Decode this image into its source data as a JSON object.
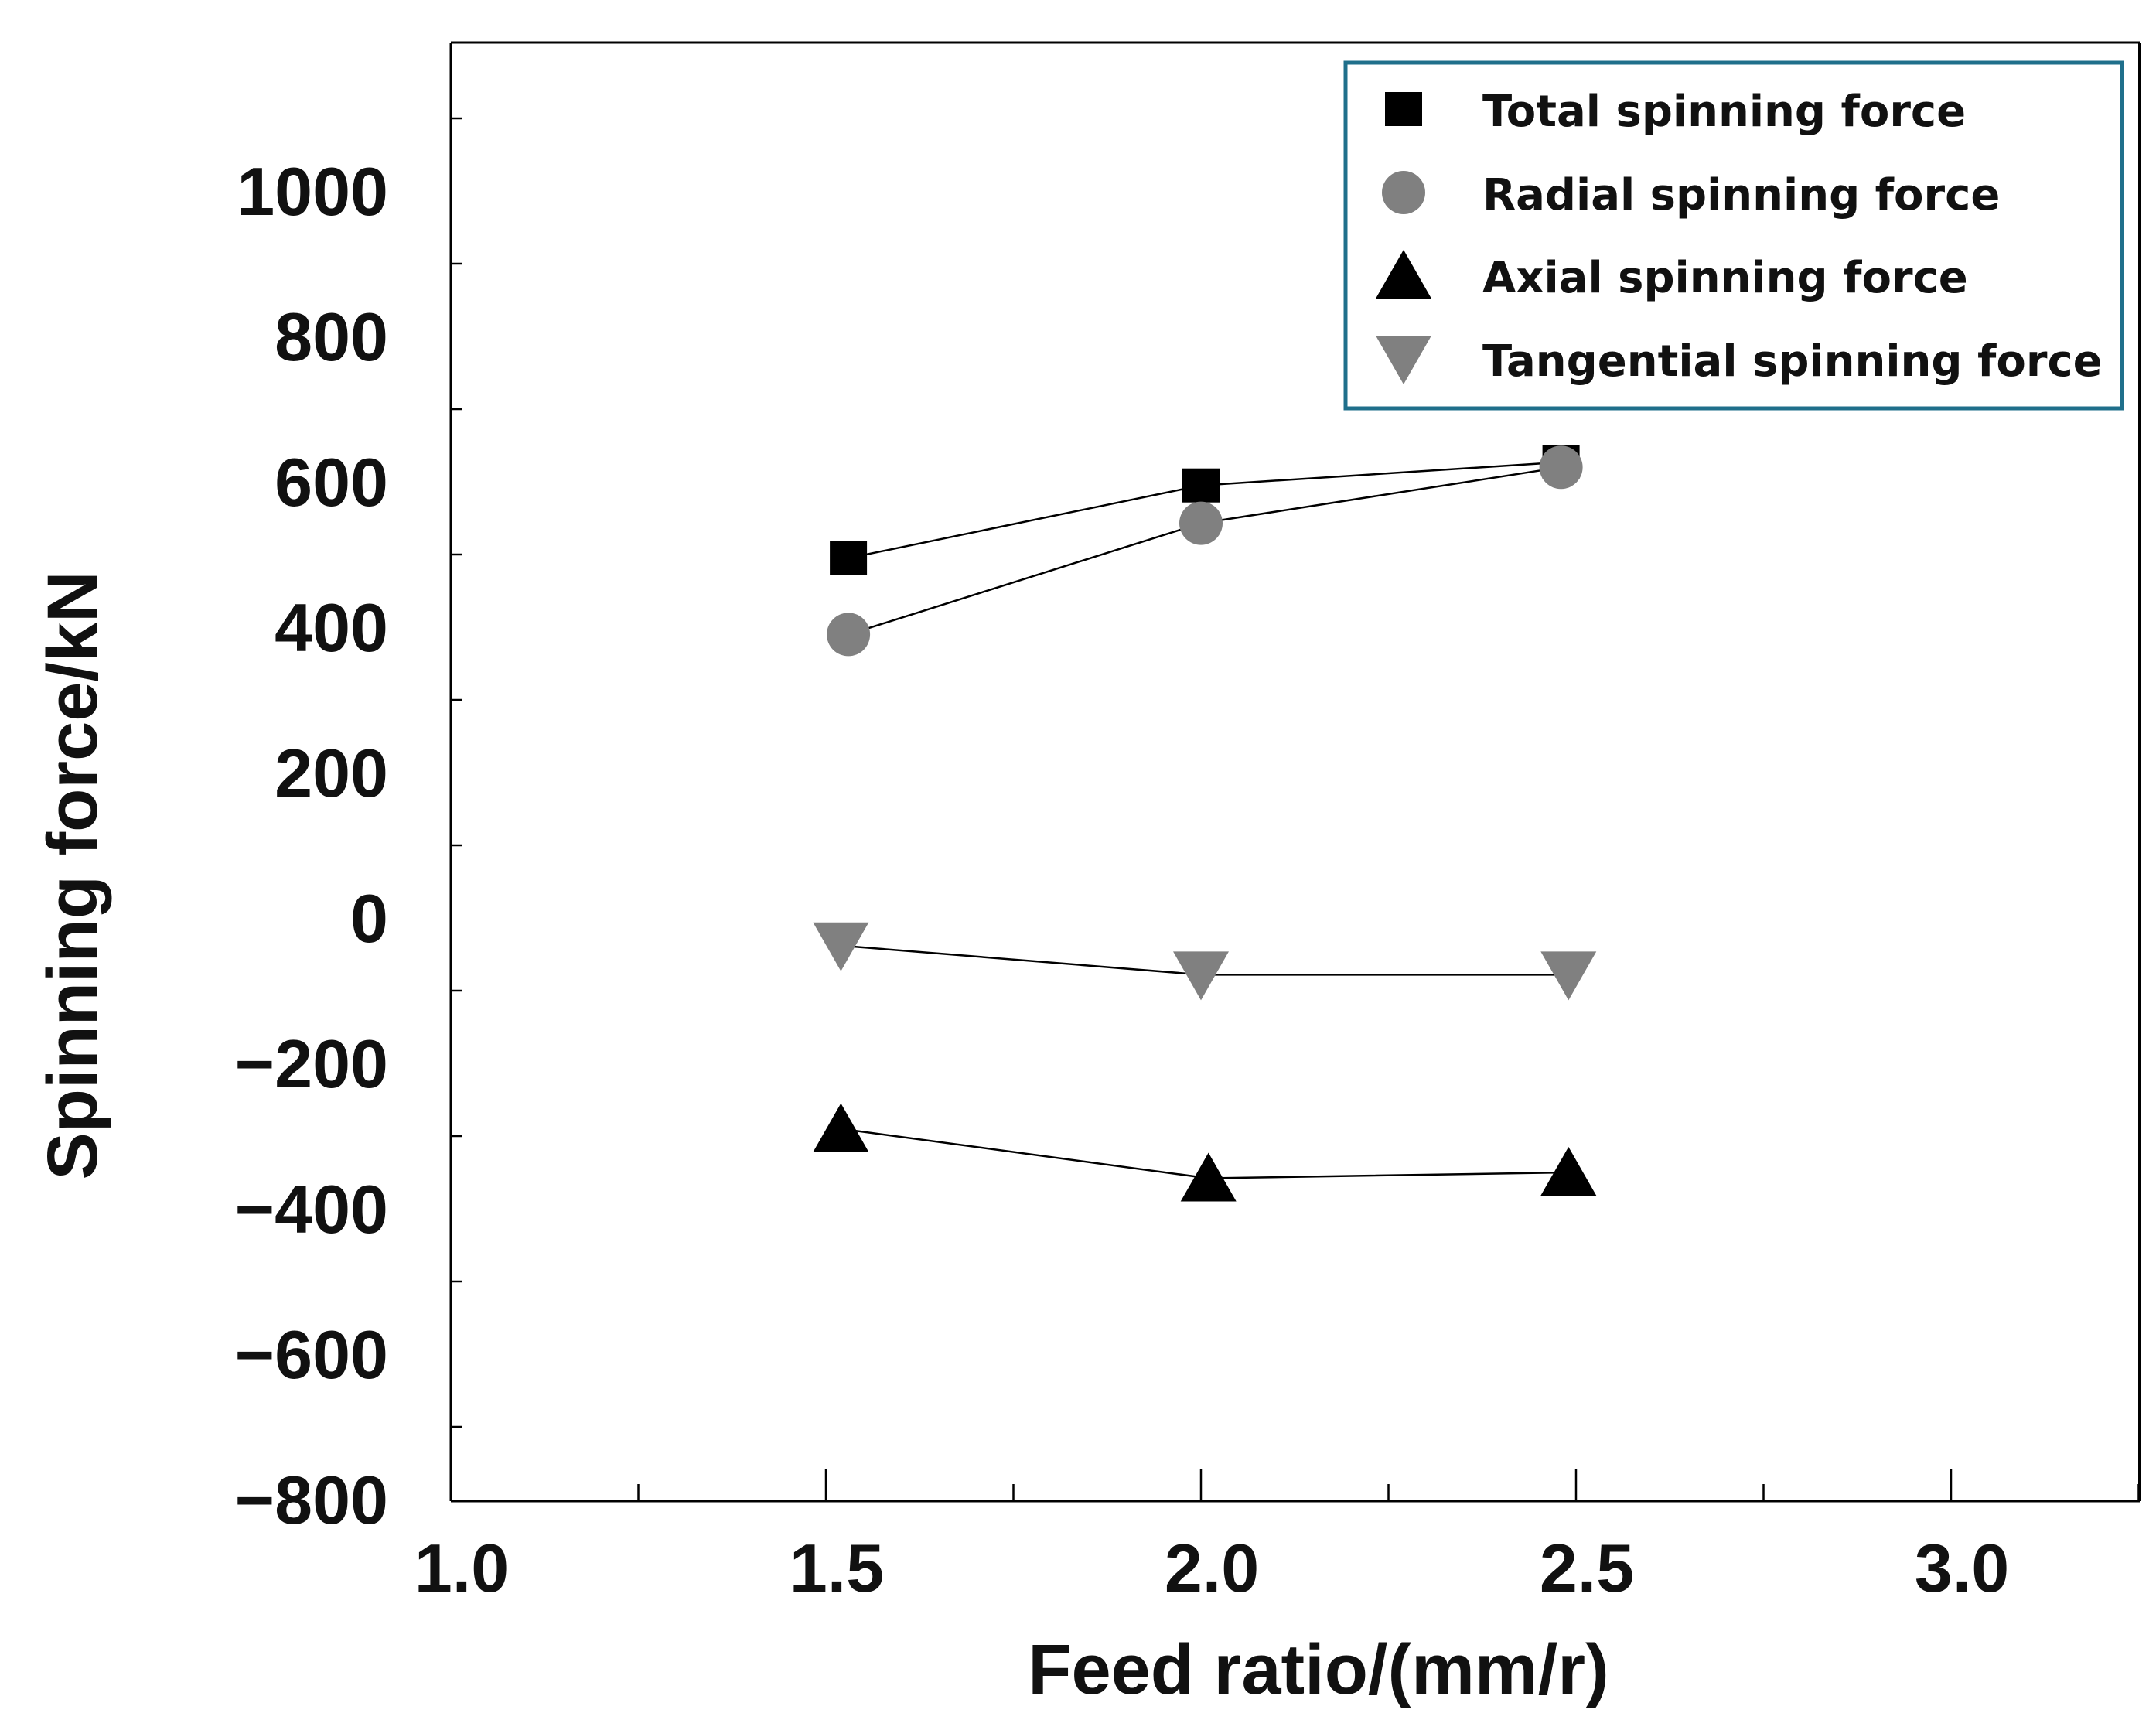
{
  "chart_data": {
    "type": "line",
    "xlabel": "Feed ratio/(mm/r)",
    "ylabel": "Spinning force/kN",
    "xlim": [
      1.0,
      3.25
    ],
    "ylim": [
      -800,
      1200
    ],
    "x_ticks": [
      {
        "value": 1.0,
        "label": "1.0"
      },
      {
        "value": 1.5,
        "label": "1.5"
      },
      {
        "value": 2.0,
        "label": "2.0"
      },
      {
        "value": 2.5,
        "label": "2.5"
      },
      {
        "value": 3.0,
        "label": "3.0"
      }
    ],
    "y_ticks": [
      {
        "value": 1000,
        "label": "1000"
      },
      {
        "value": 800,
        "label": "800"
      },
      {
        "value": 600,
        "label": "600"
      },
      {
        "value": 400,
        "label": "400"
      },
      {
        "value": 200,
        "label": "200"
      },
      {
        "value": 0,
        "label": "0"
      },
      {
        "value": -200,
        "label": "−200"
      },
      {
        "value": -400,
        "label": "−400"
      },
      {
        "value": -600,
        "label": "−600"
      },
      {
        "value": -800,
        "label": "−800"
      }
    ],
    "legend_position": "top-right",
    "series": [
      {
        "name": "Total spinning force",
        "marker": "square",
        "color": "#000000",
        "x": [
          1.53,
          2.0,
          2.48
        ],
        "y": [
          495,
          595,
          627
        ]
      },
      {
        "name": "Radial spinning force",
        "marker": "circle",
        "color": "#808080",
        "x": [
          1.53,
          2.0,
          2.48
        ],
        "y": [
          390,
          543,
          620
        ]
      },
      {
        "name": "Axial spinning force",
        "marker": "triangle-up",
        "color": "#000000",
        "x": [
          1.52,
          2.01,
          2.49
        ],
        "y": [
          -290,
          -358,
          -350
        ]
      },
      {
        "name": "Tangential spinning force",
        "marker": "triangle-down",
        "color": "#808080",
        "x": [
          1.52,
          2.0,
          2.49
        ],
        "y": [
          -38,
          -78,
          -78
        ]
      }
    ]
  },
  "colors": {
    "legend_border": "#1f6f8b",
    "axis": "#000000",
    "line": "#000000"
  }
}
